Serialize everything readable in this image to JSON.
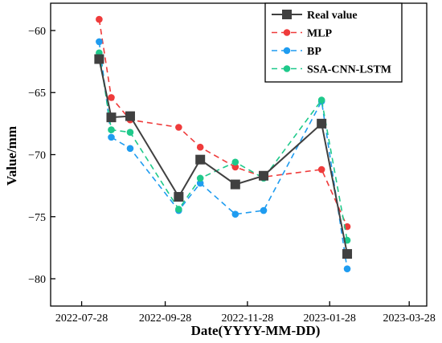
{
  "chart_data": {
    "type": "line",
    "xlabel": "Date(YYYY-MM-DD)",
    "ylabel": "Value/mm",
    "x_ticks": [
      "2022-07-28",
      "2022-09-28",
      "2022-11-28",
      "2023-01-28",
      "2023-03-28"
    ],
    "x_range": [
      "2022-07-05",
      "2023-04-10"
    ],
    "y_ticks": [
      -60,
      -65,
      -70,
      -75,
      -80
    ],
    "ylim": [
      -82.2,
      -57.8
    ],
    "legend_position": "top-right",
    "grid": false,
    "series": [
      {
        "name": "Real value",
        "color": "#404040",
        "style": "solid",
        "marker": "square",
        "points": [
          {
            "x": "2022-08-10",
            "y": -62.3
          },
          {
            "x": "2022-08-19",
            "y": -67.0
          },
          {
            "x": "2022-09-02",
            "y": -66.9
          },
          {
            "x": "2022-10-08",
            "y": -73.4
          },
          {
            "x": "2022-10-24",
            "y": -70.4
          },
          {
            "x": "2022-11-19",
            "y": -72.4
          },
          {
            "x": "2022-12-10",
            "y": -71.7
          },
          {
            "x": "2023-01-22",
            "y": -67.5
          },
          {
            "x": "2023-02-10",
            "y": -78.0
          }
        ]
      },
      {
        "name": "MLP",
        "color": "#ef3b3b",
        "style": "dashed",
        "marker": "circle",
        "points": [
          {
            "x": "2022-08-10",
            "y": -59.1
          },
          {
            "x": "2022-08-19",
            "y": -65.4
          },
          {
            "x": "2022-09-02",
            "y": -67.2
          },
          {
            "x": "2022-10-08",
            "y": -67.8
          },
          {
            "x": "2022-10-24",
            "y": -69.4
          },
          {
            "x": "2022-11-19",
            "y": -71.0
          },
          {
            "x": "2022-12-10",
            "y": -71.8
          },
          {
            "x": "2023-01-22",
            "y": -71.2
          },
          {
            "x": "2023-02-10",
            "y": -75.8
          }
        ]
      },
      {
        "name": "BP",
        "color": "#1f9cf0",
        "style": "dashed",
        "marker": "circle",
        "points": [
          {
            "x": "2022-08-10",
            "y": -60.9
          },
          {
            "x": "2022-08-19",
            "y": -68.6
          },
          {
            "x": "2022-09-02",
            "y": -69.5
          },
          {
            "x": "2022-10-08",
            "y": -74.5
          },
          {
            "x": "2022-10-24",
            "y": -72.3
          },
          {
            "x": "2022-11-19",
            "y": -74.8
          },
          {
            "x": "2022-12-10",
            "y": -74.5
          },
          {
            "x": "2023-01-22",
            "y": -65.7
          },
          {
            "x": "2023-02-10",
            "y": -79.2
          }
        ]
      },
      {
        "name": "SSA-CNN-LSTM",
        "color": "#1fc98b",
        "style": "dashed",
        "marker": "circle",
        "points": [
          {
            "x": "2022-08-10",
            "y": -61.8
          },
          {
            "x": "2022-08-19",
            "y": -68.0
          },
          {
            "x": "2022-09-02",
            "y": -68.2
          },
          {
            "x": "2022-10-08",
            "y": -74.4
          },
          {
            "x": "2022-10-24",
            "y": -71.9
          },
          {
            "x": "2022-11-19",
            "y": -70.6
          },
          {
            "x": "2022-12-10",
            "y": -71.9
          },
          {
            "x": "2023-01-22",
            "y": -65.6
          },
          {
            "x": "2023-02-10",
            "y": -76.9
          }
        ]
      }
    ]
  }
}
